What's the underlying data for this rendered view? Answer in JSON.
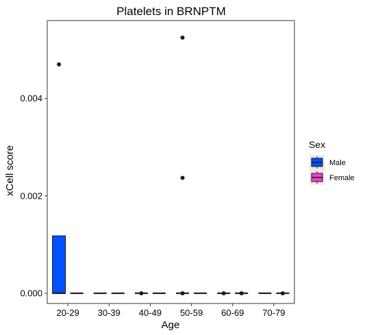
{
  "colors": {
    "male": "#0050FF",
    "female": "#FF3DD0",
    "stroke": "#1a1a1a",
    "panel_border": "#333333",
    "legend_bg": "#EBEBEB"
  },
  "chart_data": {
    "type": "boxplot",
    "title": "Platelets in BRNPTM",
    "xlabel": "Age",
    "ylabel": "xCell score",
    "categories": [
      "20-29",
      "30-39",
      "40-49",
      "50-59",
      "60-69",
      "70-79"
    ],
    "ylim": [
      -0.00021,
      0.0056
    ],
    "y_ticks": [
      0.0,
      0.002,
      0.004
    ],
    "y_tick_labels": [
      "0.000",
      "0.002",
      "0.004"
    ],
    "grid": false,
    "legend": {
      "title": "Sex",
      "position": "right",
      "entries": [
        "Male",
        "Female"
      ]
    },
    "series": [
      {
        "name": "Male",
        "color": "#0050FF",
        "boxes": [
          {
            "q1": 0.0,
            "median": 0.0,
            "q3": 0.00118,
            "whisker_low": 0.0,
            "whisker_high": 0.00118,
            "outliers": [
              0.0047
            ]
          },
          {
            "q1": 0.0,
            "median": 0.0,
            "q3": 0.0,
            "whisker_low": 0.0,
            "whisker_high": 0.0,
            "outliers": []
          },
          {
            "q1": 0.0,
            "median": 0.0,
            "q3": 0.0,
            "whisker_low": 0.0,
            "whisker_high": 0.0,
            "outliers": [
              0.0
            ]
          },
          {
            "q1": 0.0,
            "median": 0.0,
            "q3": 0.0,
            "whisker_low": 0.0,
            "whisker_high": 0.0,
            "outliers": [
              0.00525,
              0.00237,
              0.0
            ]
          },
          {
            "q1": 0.0,
            "median": 0.0,
            "q3": 0.0,
            "whisker_low": 0.0,
            "whisker_high": 0.0,
            "outliers": [
              0.0
            ]
          },
          {
            "q1": 0.0,
            "median": 0.0,
            "q3": 0.0,
            "whisker_low": 0.0,
            "whisker_high": 0.0,
            "outliers": []
          }
        ]
      },
      {
        "name": "Female",
        "color": "#FF3DD0",
        "boxes": [
          {
            "q1": 0.0,
            "median": 0.0,
            "q3": 0.0,
            "whisker_low": 0.0,
            "whisker_high": 0.0,
            "outliers": []
          },
          {
            "q1": 0.0,
            "median": 0.0,
            "q3": 0.0,
            "whisker_low": 0.0,
            "whisker_high": 0.0,
            "outliers": []
          },
          {
            "q1": 0.0,
            "median": 0.0,
            "q3": 0.0,
            "whisker_low": 0.0,
            "whisker_high": 0.0,
            "outliers": []
          },
          {
            "q1": 0.0,
            "median": 0.0,
            "q3": 0.0,
            "whisker_low": 0.0,
            "whisker_high": 0.0,
            "outliers": []
          },
          {
            "q1": 0.0,
            "median": 0.0,
            "q3": 0.0,
            "whisker_low": 0.0,
            "whisker_high": 0.0,
            "outliers": [
              0.0
            ]
          },
          {
            "q1": 0.0,
            "median": 0.0,
            "q3": 0.0,
            "whisker_low": 0.0,
            "whisker_high": 0.0,
            "outliers": [
              0.0
            ]
          }
        ]
      }
    ]
  }
}
